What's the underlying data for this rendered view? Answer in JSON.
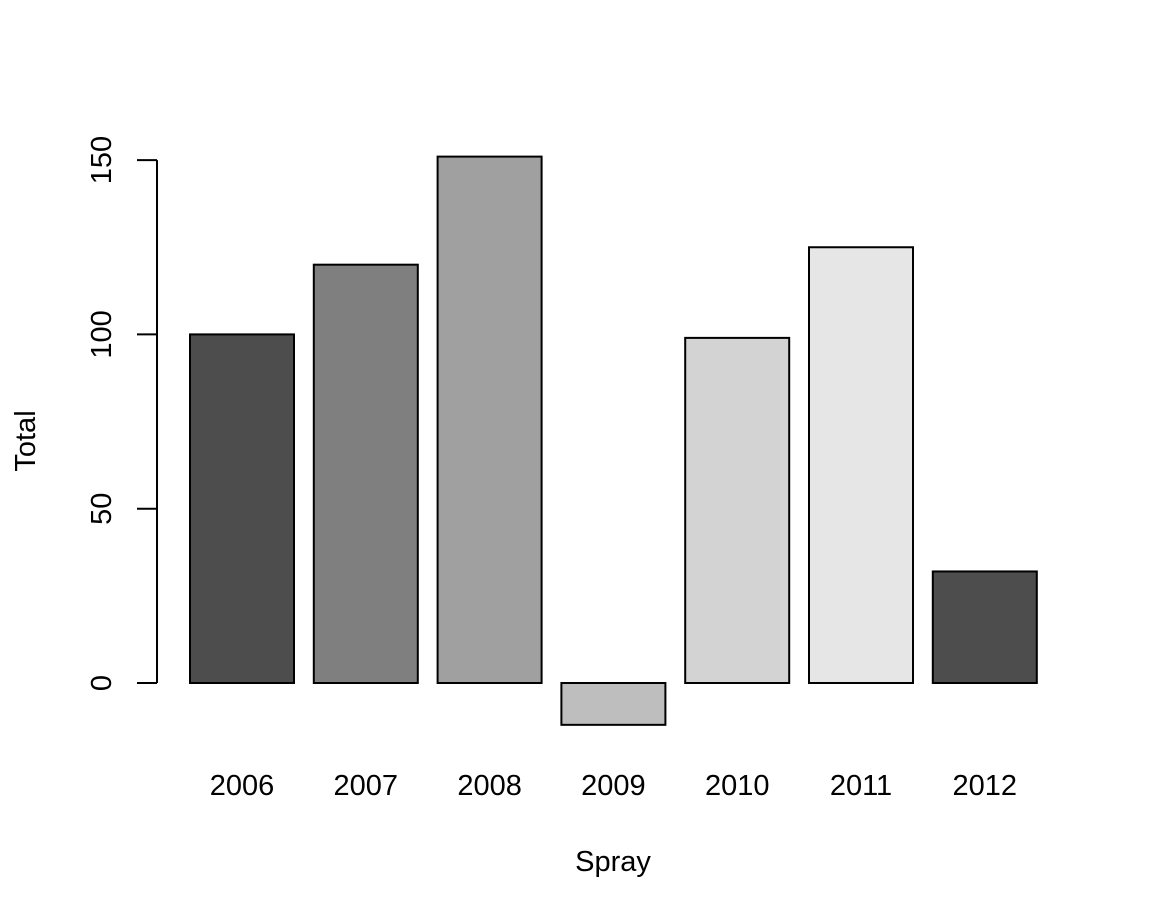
{
  "chart_data": {
    "type": "bar",
    "categories": [
      "2006",
      "2007",
      "2008",
      "2009",
      "2010",
      "2011",
      "2012"
    ],
    "values": [
      100,
      120,
      151,
      -12,
      99,
      125,
      32
    ],
    "bar_colors": [
      "#4d4d4d",
      "#7f7f7f",
      "#a0a0a0",
      "#bebebe",
      "#d3d3d3",
      "#e6e6e6",
      "#4d4d4d"
    ],
    "xlabel": "Spray",
    "ylabel": "Total",
    "yticks": [
      0,
      50,
      100,
      150
    ],
    "ylim": [
      -12,
      151
    ],
    "grid": false,
    "legend": "none"
  }
}
